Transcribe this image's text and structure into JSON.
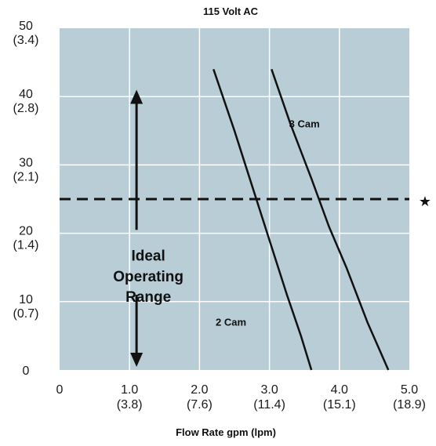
{
  "chart_data": {
    "type": "line",
    "title": "115 Volt AC",
    "xlabel": "Flow Rate gpm (lpm)",
    "ylabel": "",
    "xlim": [
      0,
      5
    ],
    "ylim": [
      0,
      50
    ],
    "grid": true,
    "x_ticks": [
      {
        "value": 0,
        "label": "0",
        "sublabel": ""
      },
      {
        "value": 1,
        "label": "1.0",
        "sublabel": "(3.8)"
      },
      {
        "value": 2,
        "label": "2.0",
        "sublabel": "(7.6)"
      },
      {
        "value": 3,
        "label": "3.0",
        "sublabel": "(11.4)"
      },
      {
        "value": 4,
        "label": "4.0",
        "sublabel": "(15.1)"
      },
      {
        "value": 5,
        "label": "5.0",
        "sublabel": "(18.9)"
      }
    ],
    "y_ticks": [
      {
        "value": 0,
        "label": "0",
        "sublabel": ""
      },
      {
        "value": 10,
        "label": "10",
        "sublabel": "(0.7)"
      },
      {
        "value": 20,
        "label": "20",
        "sublabel": "(1.4)"
      },
      {
        "value": 30,
        "label": "30",
        "sublabel": "(2.1)"
      },
      {
        "value": 40,
        "label": "40",
        "sublabel": "(2.8)"
      },
      {
        "value": 50,
        "label": "50",
        "sublabel": "(3.4)"
      }
    ],
    "series": [
      {
        "name": "2 Cam",
        "x": [
          2.2,
          2.5,
          2.75,
          3.0,
          3.25,
          3.45,
          3.6
        ],
        "y": [
          44,
          35,
          27,
          19,
          11,
          5,
          0
        ]
      },
      {
        "name": "3 Cam",
        "x": [
          3.03,
          3.3,
          3.6,
          3.85,
          4.1,
          4.4,
          4.7
        ],
        "y": [
          44,
          36,
          28,
          21,
          15,
          7,
          0
        ]
      }
    ],
    "reference_line": {
      "y": 25,
      "style": "dashed",
      "marker": "★"
    },
    "range_annotation": {
      "label_lines": [
        "Ideal",
        "Operating",
        "Range"
      ],
      "x": 1.1,
      "y_from": 0,
      "y_to": 41
    }
  },
  "colors": {
    "plot_background": "#b8cdd6",
    "grid": "#ffffff",
    "lines": "#111111"
  }
}
